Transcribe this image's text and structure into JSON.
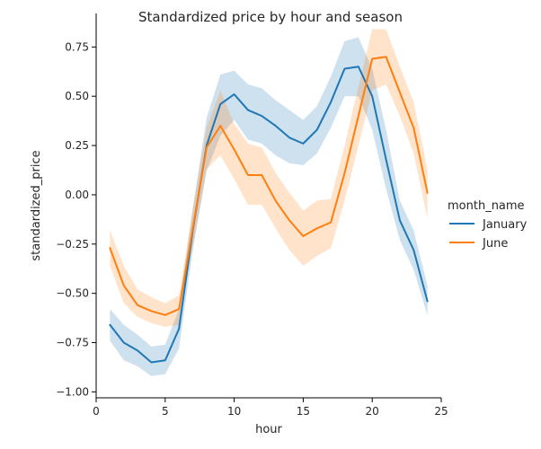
{
  "chart_data": {
    "type": "line",
    "title": "Standardized price by hour and season",
    "xlabel": "hour",
    "ylabel": "standardized_price",
    "xlim": [
      0,
      25
    ],
    "ylim": [
      -1.03,
      0.92
    ],
    "x_ticks": [
      0,
      5,
      10,
      15,
      20,
      25
    ],
    "x_tick_labels": [
      "0",
      "5",
      "10",
      "15",
      "20",
      "25"
    ],
    "y_ticks": [
      -1.0,
      -0.75,
      -0.5,
      -0.25,
      0.0,
      0.25,
      0.5,
      0.75
    ],
    "y_tick_labels": [
      "−1.00",
      "−0.75",
      "−0.50",
      "−0.25",
      "0.00",
      "0.25",
      "0.50",
      "0.75"
    ],
    "grid": false,
    "legend": {
      "title": "month_name",
      "placement": "right"
    },
    "x": [
      1,
      2,
      3,
      4,
      5,
      6,
      7,
      8,
      9,
      10,
      11,
      12,
      13,
      14,
      15,
      16,
      17,
      18,
      19,
      20,
      21,
      22,
      23,
      24
    ],
    "series": [
      {
        "name": "January",
        "color": "#1f77b4",
        "values": [
          -0.66,
          -0.75,
          -0.79,
          -0.85,
          -0.84,
          -0.68,
          -0.18,
          0.25,
          0.46,
          0.51,
          0.43,
          0.4,
          0.35,
          0.29,
          0.26,
          0.33,
          0.47,
          0.64,
          0.65,
          0.5,
          0.18,
          -0.13,
          -0.28,
          -0.54
        ],
        "lower": [
          -0.74,
          -0.84,
          -0.87,
          -0.92,
          -0.91,
          -0.78,
          -0.28,
          0.12,
          0.3,
          0.38,
          0.28,
          0.26,
          0.2,
          0.16,
          0.15,
          0.21,
          0.34,
          0.5,
          0.5,
          0.33,
          0.03,
          -0.23,
          -0.38,
          -0.61
        ],
        "upper": [
          -0.58,
          -0.66,
          -0.71,
          -0.77,
          -0.76,
          -0.58,
          -0.07,
          0.39,
          0.61,
          0.63,
          0.56,
          0.54,
          0.48,
          0.43,
          0.38,
          0.45,
          0.6,
          0.78,
          0.8,
          0.64,
          0.33,
          -0.03,
          -0.18,
          -0.46
        ]
      },
      {
        "name": "June",
        "color": "#ff7f0e",
        "values": [
          -0.27,
          -0.46,
          -0.56,
          -0.59,
          -0.61,
          -0.58,
          -0.17,
          0.24,
          0.35,
          0.23,
          0.1,
          0.1,
          -0.03,
          -0.13,
          -0.21,
          -0.17,
          -0.14,
          0.11,
          0.4,
          0.69,
          0.7,
          0.52,
          0.34,
          0.01
        ],
        "lower": [
          -0.36,
          -0.55,
          -0.62,
          -0.65,
          -0.67,
          -0.66,
          -0.27,
          0.13,
          0.2,
          0.08,
          -0.05,
          -0.05,
          -0.17,
          -0.28,
          -0.36,
          -0.31,
          -0.27,
          -0.03,
          0.25,
          0.53,
          0.56,
          0.4,
          0.21,
          -0.12
        ],
        "upper": [
          -0.18,
          -0.36,
          -0.48,
          -0.52,
          -0.55,
          -0.51,
          -0.07,
          0.34,
          0.53,
          0.36,
          0.26,
          0.24,
          0.11,
          0.01,
          -0.08,
          -0.03,
          -0.02,
          0.25,
          0.55,
          0.84,
          0.84,
          0.65,
          0.47,
          0.13
        ]
      }
    ]
  }
}
